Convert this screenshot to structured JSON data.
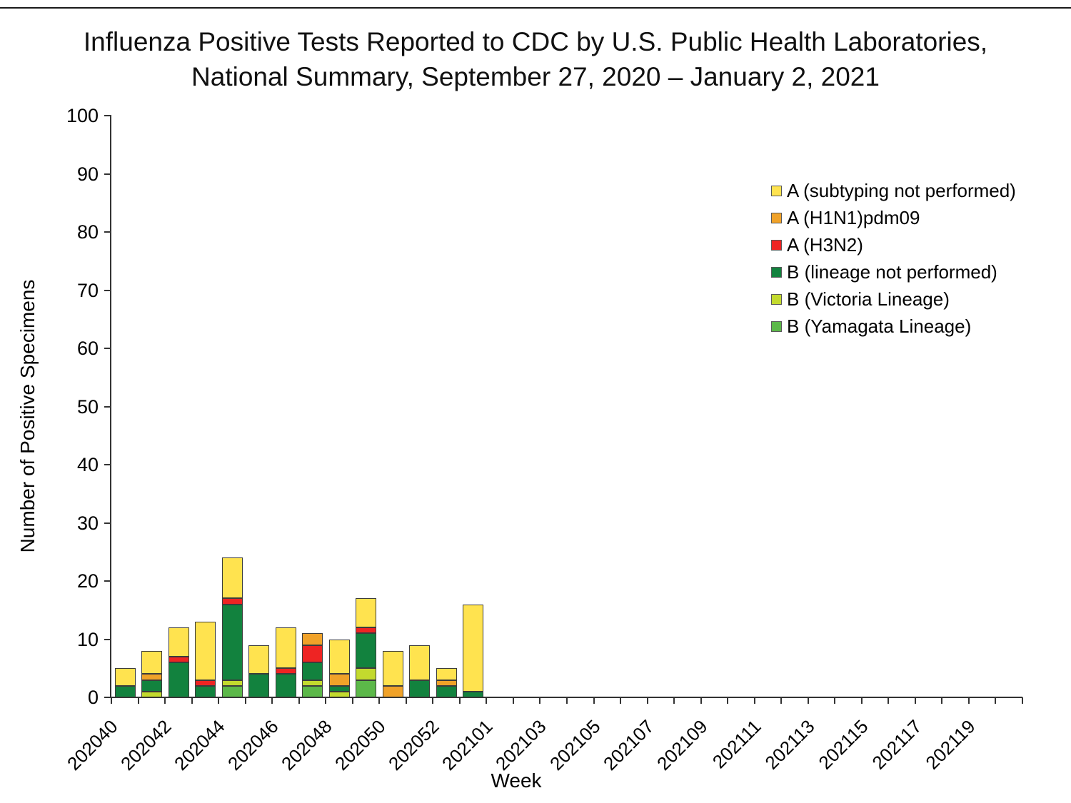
{
  "page": {
    "background": "#FFFFFF"
  },
  "title": {
    "line1": "Influenza Positive Tests Reported to CDC by U.S. Public Health Laboratories,",
    "line2": "National Summary, September 27, 2020 – January 2, 2021"
  },
  "chart_data": {
    "type": "bar",
    "stacked": true,
    "title": "Influenza Positive Tests Reported to CDC by U.S. Public Health Laboratories, National Summary, September 27, 2020 – January 2, 2021",
    "xlabel": "Week",
    "ylabel": "Number of Positive Specimens",
    "ylim": [
      0,
      100
    ],
    "ytick_interval": 10,
    "ytick_labels": [
      "0",
      "10",
      "20",
      "30",
      "40",
      "50",
      "60",
      "70",
      "80",
      "90",
      "100"
    ],
    "grid": false,
    "categories": [
      "202040",
      "202041",
      "202042",
      "202043",
      "202044",
      "202045",
      "202046",
      "202047",
      "202048",
      "202049",
      "202050",
      "202051",
      "202052",
      "202053"
    ],
    "totals": [
      5,
      8,
      12,
      13,
      24,
      9,
      12,
      11,
      10,
      17,
      8,
      9,
      5,
      16
    ],
    "x_axis": {
      "total_week_slots": 34,
      "tick_label_every": 2,
      "tick_labels": [
        "202040",
        "202042",
        "202044",
        "202046",
        "202048",
        "202050",
        "202052",
        "202101",
        "202103",
        "202105",
        "202107",
        "202109",
        "202111",
        "202113",
        "202115",
        "202117",
        "202119"
      ]
    },
    "series": [
      {
        "name": "B (Yamagata Lineage)",
        "color": "#5CB849",
        "values": [
          0,
          0,
          0,
          0,
          2,
          0,
          0,
          2,
          0,
          3,
          0,
          0,
          0,
          0
        ]
      },
      {
        "name": "B (Victoria Lineage)",
        "color": "#C3DA2E",
        "values": [
          0,
          1,
          0,
          0,
          1,
          0,
          0,
          1,
          1,
          2,
          0,
          0,
          0,
          0
        ]
      },
      {
        "name": "B (lineage not performed)",
        "color": "#12823E",
        "values": [
          2,
          2,
          6,
          2,
          13,
          4,
          4,
          3,
          1,
          6,
          0,
          3,
          2,
          1
        ]
      },
      {
        "name": "A (H3N2)",
        "color": "#EE2423",
        "values": [
          0,
          0,
          1,
          1,
          1,
          0,
          1,
          3,
          0,
          1,
          0,
          0,
          0,
          0
        ]
      },
      {
        "name": "A (H1N1)pdm09",
        "color": "#F0A229",
        "values": [
          0,
          1,
          0,
          0,
          0,
          0,
          0,
          2,
          2,
          0,
          2,
          0,
          1,
          0
        ]
      },
      {
        "name": "A (subtyping not performed)",
        "color": "#FFE34F",
        "values": [
          3,
          4,
          5,
          10,
          7,
          5,
          7,
          0,
          6,
          5,
          6,
          6,
          2,
          15
        ]
      }
    ],
    "legend": {
      "position": "upper-right",
      "items_top_to_bottom": [
        "A (subtyping not performed)",
        "A (H1N1)pdm09",
        "A (H3N2)",
        "B (lineage not performed)",
        "B (Victoria Lineage)",
        "B (Yamagata Lineage)"
      ]
    }
  }
}
